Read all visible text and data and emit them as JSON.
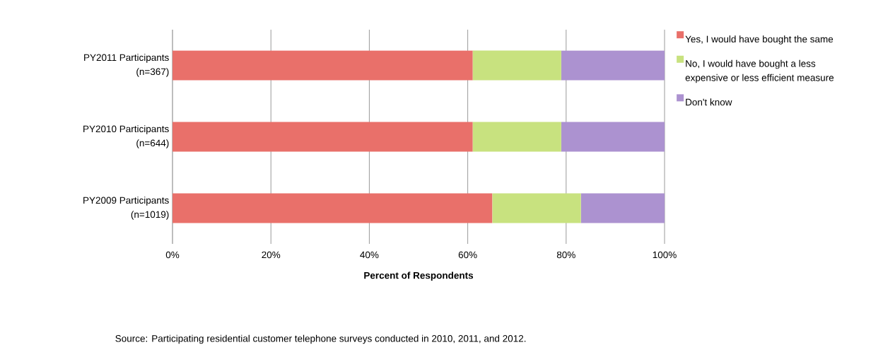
{
  "chart_data": {
    "type": "bar",
    "orientation": "horizontal",
    "stacked": true,
    "categories": [
      "PY2011 Participants (n=367)",
      "PY2010 Participants (n=644)",
      "PY2009 Participants (n=1019)"
    ],
    "series": [
      {
        "name": "Yes, I would have bought the same",
        "color": "#e9706a",
        "values": [
          61,
          61,
          65
        ]
      },
      {
        "name": "No, I would have bought a less expensive or less efficient measure",
        "color": "#c8e27f",
        "values": [
          18,
          18,
          18
        ]
      },
      {
        "name": "Don't know",
        "color": "#ac92d0",
        "values": [
          21,
          21,
          17
        ]
      }
    ],
    "xlim": [
      0,
      100
    ],
    "xticks": [
      {
        "value": 0,
        "label": "0%"
      },
      {
        "value": 20,
        "label": "20%"
      },
      {
        "value": 40,
        "label": "40%"
      },
      {
        "value": 60,
        "label": "60%"
      },
      {
        "value": 80,
        "label": "80%"
      },
      {
        "value": 100,
        "label": "100%"
      }
    ],
    "xlabel": "Percent of Respondents",
    "grid": "x",
    "legend": "right",
    "annotations": [
      "Source: Participating residential customer telephone surveys conducted in 2010, 2011, and  2012."
    ]
  }
}
